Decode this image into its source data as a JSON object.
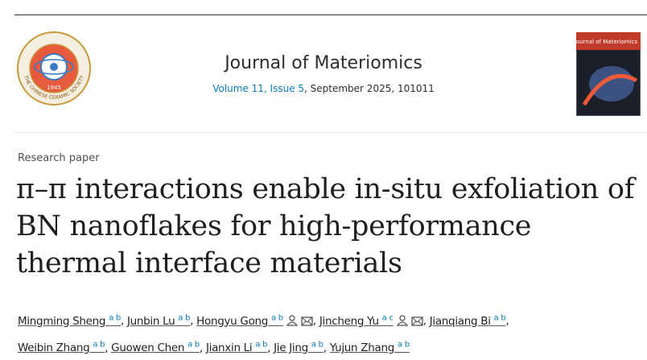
{
  "header": {
    "logo": {
      "ring_text": "THE CHINESE CERAMIC SOCIETY",
      "year": "1945"
    },
    "journal": "Journal of Materiomics",
    "volume": "Volume 11, Issue 5",
    "issue_details": ", September 2025, 101011",
    "cover": {
      "title": "Journal of Materiomics"
    }
  },
  "article": {
    "type": "Research paper",
    "title_lines": [
      "π–π interactions enable in-situ exfoliation of",
      "BN nanoflakes for high-performance",
      "thermal interface materials"
    ],
    "separator": ",",
    "author_lines": [
      [
        {
          "name": "Mingming Sheng",
          "aff": "a b"
        },
        {
          "name": "Junbin Lu",
          "aff": "a b"
        },
        {
          "name": "Hongyu Gong",
          "aff": "a b",
          "icons": true
        },
        {
          "name": "Jincheng Yu",
          "aff": "a c",
          "icons": true
        },
        {
          "name": "Jianqiang Bi",
          "aff": "a b"
        }
      ],
      [
        {
          "name": "Weibin Zhang",
          "aff": "a b"
        },
        {
          "name": "Guowen Chen",
          "aff": "a b"
        },
        {
          "name": "Jianxin Li",
          "aff": "a b"
        },
        {
          "name": "Jie Jing",
          "aff": "a b"
        },
        {
          "name": "Yujun Zhang",
          "aff": "a b"
        }
      ]
    ]
  }
}
